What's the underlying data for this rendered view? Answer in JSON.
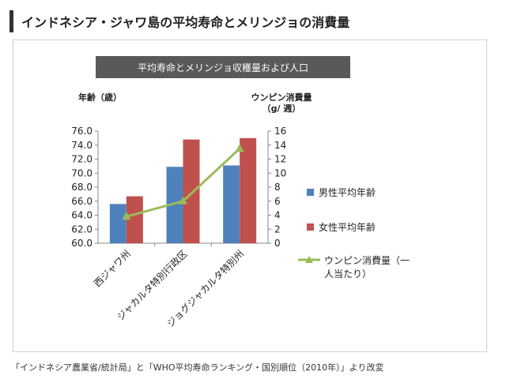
{
  "page_title": "インドネシア・ジャワ島の平均寿命とメリンジョの消費量",
  "source_note": "「インドネシア農業省/統計局」と「WHO平均寿命ランキング・国別順位（2010年）」より改変",
  "colors": {
    "male": "#4f81bd",
    "female": "#c0504d",
    "line": "#9bbb59",
    "title_bar": "#595959"
  },
  "chart_data": {
    "type": "bar",
    "title": "平均寿命とメリンジョ収穫量および人口",
    "categories": [
      "西ジャワ州",
      "ジャカルタ特別行政区",
      "ジョグジャカルタ特別州"
    ],
    "series": [
      {
        "name": "男性平均年齢",
        "type": "bar",
        "axis": "left",
        "values": [
          65.6,
          70.9,
          71.1
        ]
      },
      {
        "name": "女性平均年齢",
        "type": "bar",
        "axis": "left",
        "values": [
          66.7,
          74.8,
          75.0
        ]
      },
      {
        "name": "ウンピン消費量（一人当たり）",
        "type": "line",
        "axis": "right",
        "values": [
          3.8,
          6.0,
          13.5
        ]
      }
    ],
    "ylabel_left": "年齢（歳）",
    "ylabel_right": [
      "ウンピン消費量",
      "（g/ 週）"
    ],
    "ylim_left": [
      60,
      76
    ],
    "ylim_right": [
      0,
      16
    ],
    "yticks_left": [
      "60.0",
      "62.0",
      "64.0",
      "66.0",
      "68.0",
      "70.0",
      "72.0",
      "74.0",
      "76.0"
    ],
    "yticks_right": [
      "0",
      "2",
      "4",
      "6",
      "8",
      "10",
      "12",
      "14",
      "16"
    ],
    "legend": {
      "position": "right",
      "labels": [
        "男性平均年齢",
        "女性平均年齢",
        "ウンピン消費量（一",
        "人当たり）"
      ]
    },
    "grid": false
  }
}
